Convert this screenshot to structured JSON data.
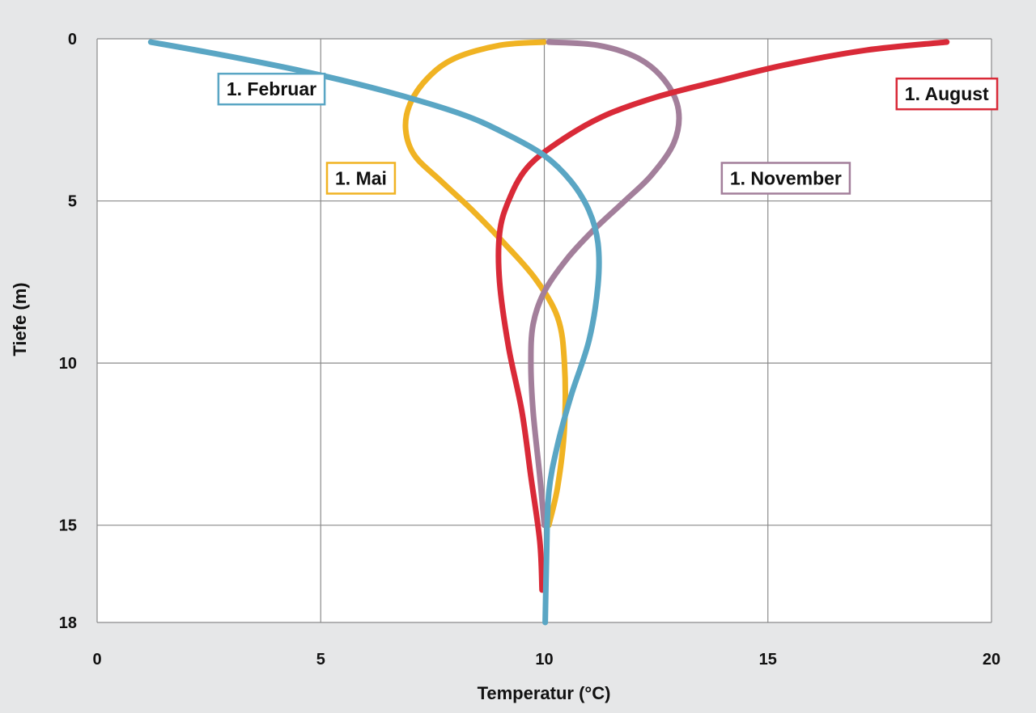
{
  "chart_data": {
    "type": "line",
    "title": "",
    "xlabel": "Temperatur (°C)",
    "ylabel": "Tiefe (m)",
    "xlim": [
      0,
      20
    ],
    "ylim": [
      0,
      18
    ],
    "y_inverted": true,
    "x_ticks": [
      "0",
      "5",
      "10",
      "15",
      "20"
    ],
    "y_ticks": [
      "0",
      "5",
      "10",
      "15",
      "18"
    ],
    "grid": true,
    "series": [
      {
        "name": "1. Februar",
        "color": "#5aa6c4",
        "x": [
          1.2,
          2.8,
          4.6,
          6.4,
          8.1,
          9.1,
          10.0,
          10.6,
          11.0,
          11.2,
          11.2,
          11.0,
          10.6,
          10.3,
          10.1,
          10.05,
          10.02
        ],
        "y": [
          0.1,
          0.5,
          1.0,
          1.6,
          2.3,
          2.9,
          3.6,
          4.4,
          5.3,
          6.3,
          7.6,
          9.3,
          11.0,
          12.5,
          14.0,
          16.0,
          18.0
        ]
      },
      {
        "name": "1. Mai",
        "color": "#f0b323",
        "x": [
          10.0,
          9.0,
          8.0,
          7.4,
          7.0,
          6.9,
          7.1,
          7.7,
          8.4,
          9.1,
          9.8,
          10.3,
          10.45,
          10.45,
          10.3,
          10.1
        ],
        "y": [
          0.1,
          0.2,
          0.6,
          1.2,
          2.0,
          2.8,
          3.6,
          4.4,
          5.3,
          6.3,
          7.4,
          8.6,
          10.0,
          12.0,
          13.8,
          15.0
        ]
      },
      {
        "name": "1. November",
        "color": "#a37f9b",
        "x": [
          10.1,
          11.2,
          12.1,
          12.7,
          13.0,
          12.9,
          12.4,
          11.8,
          11.1,
          10.5,
          10.0,
          9.75,
          9.7,
          9.75,
          9.9,
          10.0
        ],
        "y": [
          0.1,
          0.2,
          0.6,
          1.3,
          2.2,
          3.2,
          4.2,
          5.0,
          5.9,
          6.8,
          7.8,
          8.8,
          10.0,
          11.5,
          13.5,
          15.0
        ]
      },
      {
        "name": "1. August",
        "color": "#d92a38",
        "x": [
          19.0,
          17.2,
          15.4,
          13.9,
          12.5,
          11.3,
          10.3,
          9.6,
          9.2,
          9.0,
          9.0,
          9.2,
          9.5,
          9.7,
          9.9,
          9.95
        ],
        "y": [
          0.1,
          0.35,
          0.8,
          1.3,
          1.8,
          2.4,
          3.2,
          4.0,
          5.0,
          6.0,
          7.5,
          9.5,
          11.5,
          13.5,
          15.5,
          17.0
        ]
      }
    ],
    "labels": [
      {
        "text": "1. Februar",
        "series": 0,
        "x": 3.9,
        "y": 1.55
      },
      {
        "text": "1. Mai",
        "series": 1,
        "x": 5.9,
        "y": 4.3
      },
      {
        "text": "1. November",
        "series": 2,
        "x": 15.4,
        "y": 4.3
      },
      {
        "text": "1. August",
        "series": 3,
        "x": 19.0,
        "y": 1.7
      }
    ]
  }
}
